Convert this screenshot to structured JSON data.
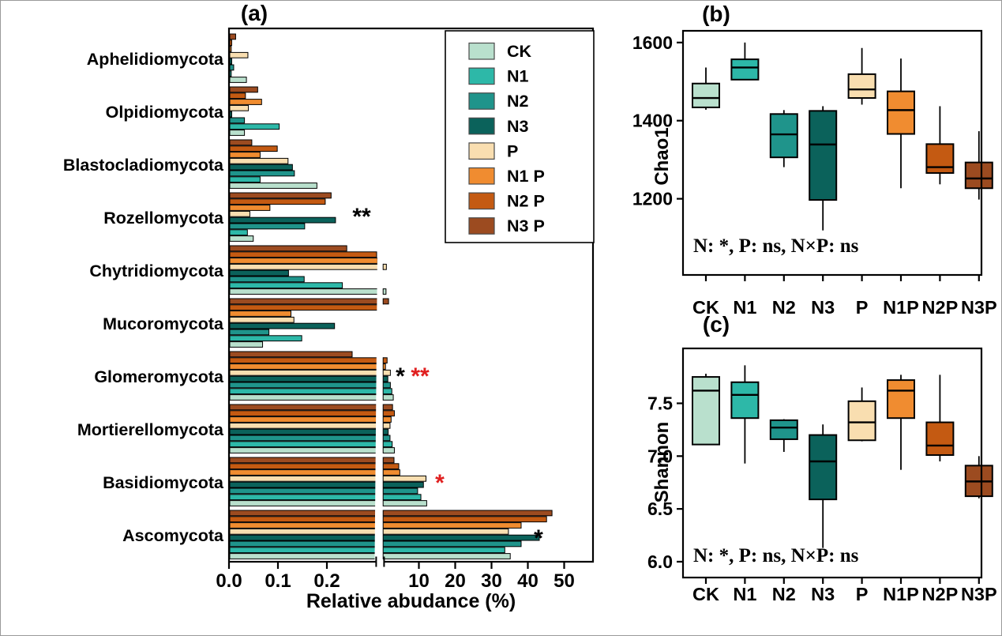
{
  "treatments_legend": [
    "CK",
    "N1",
    "N2",
    "N3",
    "P",
    "N1 P",
    "N2 P",
    "N3 P"
  ],
  "chart_data": [
    {
      "id": "a",
      "type": "bar",
      "orientation": "horizontal",
      "title": "(a)",
      "xlabel": "Relative abudance (%)",
      "broken_x_axis": {
        "left_segment_range": [
          0,
          0.3
        ],
        "left_tick_values": [
          0,
          0.1,
          0.2
        ],
        "left_tick_labels": [
          "0.0",
          "0.1",
          "0.2"
        ],
        "right_segment_range": [
          0,
          58
        ],
        "right_tick_values": [
          10,
          20,
          30,
          40,
          50
        ],
        "right_tick_labels": [
          "10",
          "20",
          "30",
          "40",
          "50"
        ],
        "unit": "%"
      },
      "categories_top_to_bottom": [
        "Aphelidiomycota",
        "Olpidiomycota",
        "Blastocladiomycota",
        "Rozellomycota",
        "Chytridiomycota",
        "Mucoromycota",
        "Glomeromycota",
        "Mortierellomycota",
        "Basidiomycota",
        "Ascomycota"
      ],
      "series": [
        {
          "name": "CK",
          "legend_label": "CK",
          "color": "#b9e0cd",
          "values": [
            0.034,
            0.03,
            0.178,
            0.048,
            0.8,
            0.067,
            2.8,
            3.1,
            12.0,
            35.0
          ]
        },
        {
          "name": "N1",
          "legend_label": "N1",
          "color": "#2db8a8",
          "values": [
            0.003,
            0.101,
            0.062,
            0.036,
            0.23,
            0.147,
            2.4,
            2.5,
            10.4,
            33.5
          ]
        },
        {
          "name": "N2",
          "legend_label": "N2",
          "color": "#1f948b",
          "values": [
            0.008,
            0.03,
            0.132,
            0.153,
            0.152,
            0.08,
            2.0,
            1.9,
            9.5,
            38.0
          ]
        },
        {
          "name": "N3",
          "legend_label": "N3",
          "color": "#0b625b",
          "values": [
            0.004,
            0.004,
            0.128,
            0.216,
            0.12,
            0.214,
            1.3,
            1.4,
            11.1,
            43.0
          ]
        },
        {
          "name": "P",
          "legend_label": "P",
          "color": "#f9deb0",
          "values": [
            0.037,
            0.038,
            0.119,
            0.041,
            0.9,
            0.131,
            2.0,
            1.9,
            11.8,
            34.5
          ]
        },
        {
          "name": "N1P",
          "legend_label": "N1 P",
          "color": "#f08c30",
          "values": [
            0.003,
            0.065,
            0.062,
            0.082,
            0.31,
            0.125,
            0.65,
            2.2,
            4.6,
            38.0
          ]
        },
        {
          "name": "N2P",
          "legend_label": "N2 P",
          "color": "#c45a12",
          "values": [
            0.004,
            0.032,
            0.097,
            0.195,
            0.3,
            0.31,
            1.1,
            3.1,
            4.3,
            45.0
          ]
        },
        {
          "name": "N3P",
          "legend_label": "N3 P",
          "color": "#9c4b20",
          "values": [
            0.012,
            0.057,
            0.045,
            0.207,
            0.239,
            1.5,
            0.25,
            2.6,
            3.0,
            46.5
          ]
        }
      ],
      "significance_marks": [
        {
          "category": "Rozellomycota",
          "text": "**",
          "color": "#000000"
        },
        {
          "category": "Glomeromycota",
          "text": "*",
          "color": "#000000"
        },
        {
          "category": "Glomeromycota",
          "text": "**",
          "color": "#e01f1f"
        },
        {
          "category": "Basidiomycota",
          "text": "*",
          "color": "#e01f1f"
        },
        {
          "category": "Ascomycota",
          "text": "*",
          "color": "#000000"
        }
      ]
    },
    {
      "id": "b",
      "type": "boxplot",
      "title": "(b)",
      "ylabel": "Chao1",
      "annotation": "N: *, P: ns, N×P: ns",
      "ylim": [
        1005,
        1630
      ],
      "ytick_values": [
        1200,
        1400,
        1600
      ],
      "ytick_labels": [
        "1200",
        "1400",
        "1600"
      ],
      "categories": [
        "CK",
        "N1",
        "N2",
        "N3",
        "P",
        "N1P",
        "N2P",
        "N3P"
      ],
      "boxes": [
        {
          "label": "CK",
          "whisker_low": 1428,
          "q1": 1434,
          "median": 1458,
          "q3": 1495,
          "whisker_high": 1536
        },
        {
          "label": "N1",
          "whisker_low": 1505,
          "q1": 1505,
          "median": 1536,
          "q3": 1557,
          "whisker_high": 1600
        },
        {
          "label": "N2",
          "whisker_low": 1281,
          "q1": 1306,
          "median": 1365,
          "q3": 1417,
          "whisker_high": 1427
        },
        {
          "label": "N3",
          "whisker_low": 1119,
          "q1": 1197,
          "median": 1339,
          "q3": 1425,
          "whisker_high": 1437
        },
        {
          "label": "P",
          "whisker_low": 1441,
          "q1": 1458,
          "median": 1480,
          "q3": 1519,
          "whisker_high": 1586
        },
        {
          "label": "N1P",
          "whisker_low": 1227,
          "q1": 1366,
          "median": 1427,
          "q3": 1475,
          "whisker_high": 1559
        },
        {
          "label": "N2P",
          "whisker_low": 1237,
          "q1": 1266,
          "median": 1281,
          "q3": 1340,
          "whisker_high": 1437
        },
        {
          "label": "N3P",
          "whisker_low": 1198,
          "q1": 1227,
          "median": 1252,
          "q3": 1293,
          "whisker_high": 1373
        }
      ]
    },
    {
      "id": "c",
      "type": "boxplot",
      "title": "(c)",
      "ylabel": "Shannon",
      "annotation": "N: *, P: ns, N×P: ns",
      "ylim": [
        5.85,
        8.02
      ],
      "ytick_values": [
        6.0,
        6.5,
        7.0,
        7.5
      ],
      "ytick_labels": [
        "6.0",
        "6.5",
        "7.0",
        "7.5"
      ],
      "categories": [
        "CK",
        "N1",
        "N2",
        "N3",
        "P",
        "N1P",
        "N2P",
        "N3P"
      ],
      "boxes": [
        {
          "label": "CK",
          "whisker_low": 7.11,
          "q1": 7.11,
          "median": 7.62,
          "q3": 7.75,
          "whisker_high": 7.78
        },
        {
          "label": "N1",
          "whisker_low": 6.93,
          "q1": 7.36,
          "median": 7.58,
          "q3": 7.7,
          "whisker_high": 7.86
        },
        {
          "label": "N2",
          "whisker_low": 7.04,
          "q1": 7.16,
          "median": 7.27,
          "q3": 7.34,
          "whisker_high": 7.35
        },
        {
          "label": "N3",
          "whisker_low": 6.13,
          "q1": 6.59,
          "median": 6.95,
          "q3": 7.2,
          "whisker_high": 7.3
        },
        {
          "label": "P",
          "whisker_low": 7.14,
          "q1": 7.15,
          "median": 7.32,
          "q3": 7.52,
          "whisker_high": 7.65
        },
        {
          "label": "N1P",
          "whisker_low": 6.87,
          "q1": 7.36,
          "median": 7.62,
          "q3": 7.72,
          "whisker_high": 7.77
        },
        {
          "label": "N2P",
          "whisker_low": 6.95,
          "q1": 7.01,
          "median": 7.1,
          "q3": 7.32,
          "whisker_high": 7.77
        },
        {
          "label": "N3P",
          "whisker_low": 6.6,
          "q1": 6.62,
          "median": 6.76,
          "q3": 6.91,
          "whisker_high": 7.0
        }
      ]
    }
  ]
}
